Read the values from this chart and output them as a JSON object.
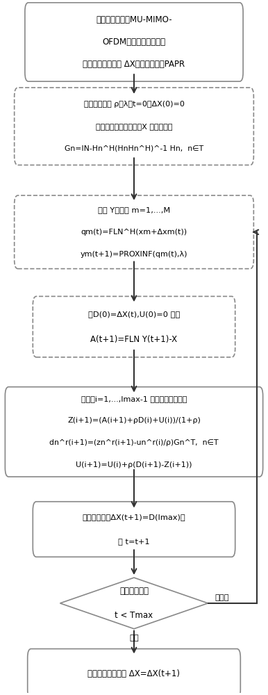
{
  "bg_color": "#ffffff",
  "box_edge": "#888888",
  "arrow_color": "#333333",
  "text_color": "#000000",
  "fig_width": 3.86,
  "fig_height": 10.0,
  "box1_text_line1": "给定一个大规模MU-MIMO-",
  "box1_text_line2": "OFDM下行链路频域信号",
  "box1_text_line3": "构造一个干扰信号 ΔX以降低信号的PAPR",
  "box2_text_line1": "设置初始参数 ρ、λ、t=0、ΔX(0)=0",
  "box2_text_line2": "，和计算初始发射信号X 和映射矩阵",
  "box2_text_line3": "Gn=IN-Hn^H(HnHn^H)^-1 Hn,  n∈T",
  "box3_text_line1": "更新 Y，对于 m=1,...,M",
  "box3_text_line2": "qm(t)=FLN^H(xm+Δxm(t))",
  "box3_text_line3": "ym(t+1)=PROXINF(qm(t),λ)",
  "box4_text_line1": "令D(0)=ΔX(t),U(0)=0 计算",
  "box4_text_line2": "A(t+1)=FLN Y(t+1)-X",
  "box5_text_line1": "对于，i=1,...,Imax-1 重复以下递归循环",
  "box5_text_line2": "Z(i+1)=(A(i+1)+ρD(i)+U(i))/(1+ρ)",
  "box5_text_line3": "dn^r(i+1)=(zn^r(i+1)-un^r(i)/ρ)Gn^T,  n∈T",
  "box5_text_line4": "U(i+1)=U(i)+ρ(D(i+1)-Z(i+1))",
  "box6_text_line1": "返回干扰信号ΔX(t+1)=D(Imax)，",
  "box6_text_line2": "令 t=t+1",
  "diamond_line1": "满足终止条件",
  "diamond_line2": "t < Tmax",
  "box8_text": "最终返回干扰信号 ΔX=ΔX(t+1)",
  "not_satisfied": "不满足",
  "satisfied": "满足"
}
